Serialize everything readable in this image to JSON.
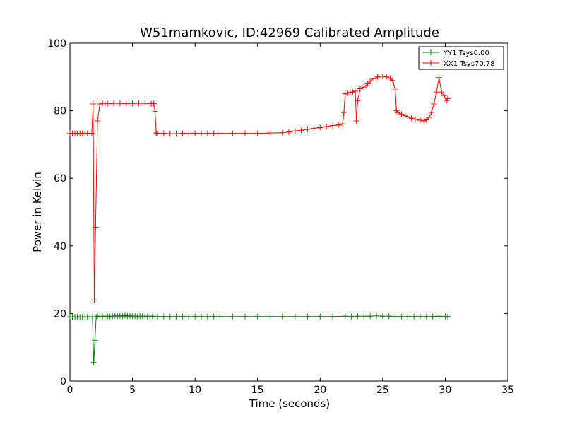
{
  "chart_data": {
    "type": "line",
    "title": "W51mamkovic, ID:42969 Calibrated Amplitude",
    "xlabel": "Time (seconds)",
    "ylabel": "Power in Kelvin",
    "xlim": [
      0,
      35
    ],
    "ylim": [
      0,
      100
    ],
    "xticks": [
      0,
      5,
      10,
      15,
      20,
      25,
      30,
      35
    ],
    "yticks": [
      0,
      20,
      40,
      60,
      80,
      100
    ],
    "grid": false,
    "legend_position": "top-right",
    "series": [
      {
        "name": "YY1 Tsys0.00",
        "color": "#008000",
        "marker": "plus",
        "x": [
          0.0,
          0.2,
          0.4,
          0.6,
          0.8,
          1.0,
          1.2,
          1.4,
          1.6,
          1.8,
          1.9,
          2.0,
          2.1,
          2.2,
          2.4,
          2.6,
          2.8,
          3.0,
          3.2,
          3.4,
          3.6,
          3.8,
          4.0,
          4.2,
          4.4,
          4.6,
          4.8,
          5.0,
          5.2,
          5.4,
          5.6,
          5.8,
          6.0,
          6.2,
          6.4,
          6.6,
          6.8,
          7.0,
          7.5,
          8.0,
          8.5,
          9.0,
          9.5,
          10.0,
          10.5,
          11.0,
          11.5,
          12.0,
          13.0,
          14.0,
          15.0,
          16.0,
          17.0,
          18.0,
          19.0,
          20.0,
          21.0,
          22.0,
          22.5,
          23.0,
          23.5,
          24.0,
          24.5,
          25.0,
          25.5,
          26.0,
          26.5,
          27.0,
          27.5,
          28.0,
          28.5,
          29.0,
          29.5,
          30.0,
          30.2
        ],
        "values": [
          19.0,
          19.0,
          19.0,
          19.0,
          19.0,
          19.0,
          19.0,
          19.0,
          19.0,
          19.0,
          5.5,
          12.0,
          19.0,
          19.2,
          19.2,
          19.1,
          19.2,
          19.2,
          19.1,
          19.2,
          19.3,
          19.2,
          19.3,
          19.2,
          19.4,
          19.2,
          19.3,
          19.2,
          19.2,
          19.1,
          19.2,
          19.2,
          19.2,
          19.1,
          19.2,
          19.2,
          19.1,
          19.1,
          19.1,
          19.1,
          19.1,
          19.1,
          19.1,
          19.1,
          19.1,
          19.1,
          19.1,
          19.1,
          19.1,
          19.1,
          19.1,
          19.1,
          19.1,
          19.1,
          19.1,
          19.1,
          19.1,
          19.2,
          19.1,
          19.2,
          19.2,
          19.2,
          19.3,
          19.2,
          19.2,
          19.1,
          19.1,
          19.1,
          19.1,
          19.1,
          19.1,
          19.1,
          19.2,
          19.1,
          19.1
        ]
      },
      {
        "name": "XX1 Tsys70.78",
        "color": "#ff0000",
        "marker": "plus",
        "x": [
          0.0,
          0.2,
          0.4,
          0.6,
          0.8,
          1.0,
          1.2,
          1.4,
          1.6,
          1.75,
          1.85,
          1.95,
          2.05,
          2.2,
          2.4,
          2.6,
          2.8,
          3.0,
          3.5,
          4.0,
          4.5,
          5.0,
          5.5,
          6.0,
          6.5,
          6.7,
          6.8,
          6.9,
          7.0,
          7.5,
          8.0,
          8.5,
          9.0,
          9.5,
          10.0,
          10.5,
          11.0,
          11.5,
          12.0,
          13.0,
          14.0,
          15.0,
          16.0,
          17.0,
          17.5,
          18.0,
          18.5,
          19.0,
          19.5,
          20.0,
          20.5,
          21.0,
          21.5,
          21.8,
          21.9,
          22.0,
          22.2,
          22.4,
          22.6,
          22.8,
          22.9,
          23.0,
          23.2,
          23.5,
          23.8,
          24.0,
          24.3,
          24.6,
          25.0,
          25.3,
          25.6,
          25.8,
          26.0,
          26.1,
          26.2,
          26.5,
          26.8,
          27.0,
          27.3,
          27.6,
          28.0,
          28.3,
          28.5,
          28.7,
          28.9,
          29.1,
          29.3,
          29.5,
          29.7,
          29.9,
          30.1,
          30.2
        ],
        "values": [
          73.3,
          73.3,
          73.3,
          73.3,
          73.3,
          73.3,
          73.3,
          73.3,
          73.3,
          73.3,
          82.0,
          24.0,
          45.5,
          77.0,
          82.0,
          82.2,
          82.2,
          82.1,
          82.2,
          82.2,
          82.1,
          82.2,
          82.2,
          82.2,
          82.1,
          82.1,
          79.8,
          73.4,
          73.3,
          73.3,
          73.2,
          73.2,
          73.3,
          73.3,
          73.3,
          73.3,
          73.3,
          73.3,
          73.3,
          73.3,
          73.3,
          73.3,
          73.4,
          73.5,
          73.7,
          74.0,
          74.2,
          74.5,
          74.8,
          75.0,
          75.3,
          75.6,
          75.8,
          76.1,
          79.5,
          85.0,
          85.2,
          85.4,
          85.5,
          85.8,
          77.0,
          83.0,
          86.5,
          87.0,
          88.0,
          88.8,
          89.5,
          90.0,
          90.2,
          90.0,
          89.6,
          89.0,
          86.2,
          80.0,
          79.5,
          79.0,
          78.5,
          78.2,
          77.8,
          77.5,
          77.2,
          77.0,
          77.3,
          78.0,
          79.5,
          82.0,
          85.5,
          89.8,
          85.5,
          84.5,
          83.0,
          83.6
        ]
      }
    ]
  }
}
